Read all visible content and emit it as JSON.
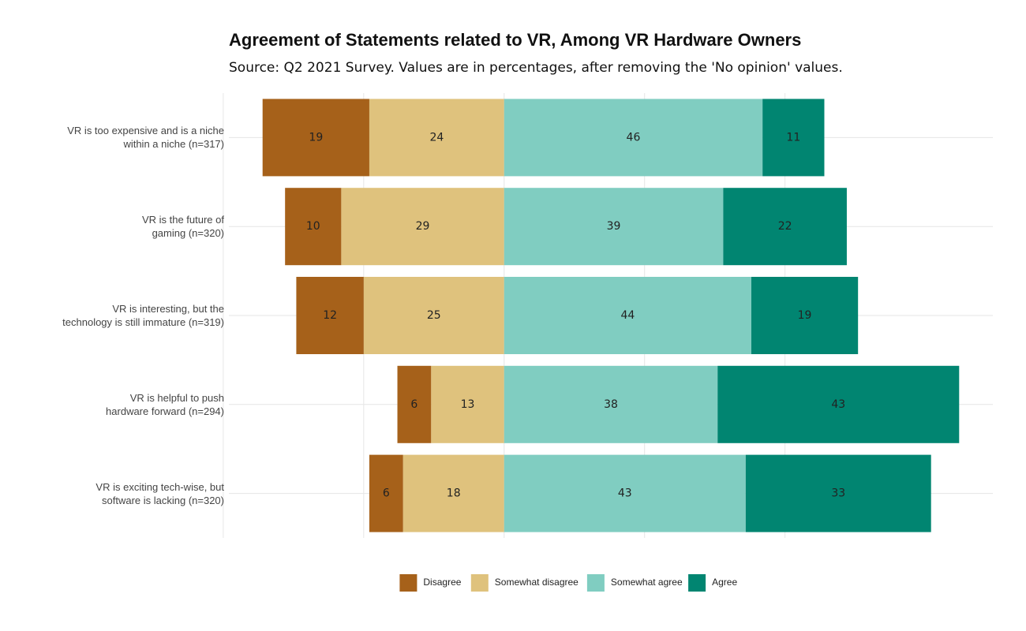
{
  "chart_data": {
    "type": "diverging_bar",
    "title": "Agreement of Statements related to VR, Among VR Hardware Owners",
    "subtitle": "Source: Q2 2021 Survey. Values are in percentages, after removing the 'No opinion' values.",
    "categories": [
      "VR is too expensive and is a niche\nwithin a niche (n=317)",
      "VR is the future of\ngaming (n=320)",
      "VR is interesting, but the\ntechnology is still immature (n=319)",
      "VR is helpful to push\nhardware forward (n=294)",
      "VR is exciting tech-wise, but\nsoftware is lacking (n=320)"
    ],
    "series": [
      {
        "name": "Disagree",
        "color": "#a6611a",
        "values": [
          -19,
          -10,
          -12,
          -6,
          -6
        ],
        "value_labels": [
          "19",
          "10",
          "12",
          "6",
          "6"
        ]
      },
      {
        "name": "Somewhat disagree",
        "color": "#dfc27d",
        "values": [
          -24,
          -29,
          -25,
          -13,
          -18
        ],
        "value_labels": [
          "24",
          "29",
          "25",
          "13",
          "18"
        ]
      },
      {
        "name": "Somewhat agree",
        "color": "#80cdc1",
        "values": [
          46,
          39,
          44,
          38,
          43
        ]
      },
      {
        "name": "Agree",
        "color": "#018571",
        "values": [
          11,
          22,
          19,
          43,
          33
        ]
      }
    ],
    "xlim": [
      -49,
      87
    ],
    "xticks": [
      -50,
      -25,
      0,
      25,
      50
    ],
    "grid": true,
    "legend": "bottom"
  }
}
